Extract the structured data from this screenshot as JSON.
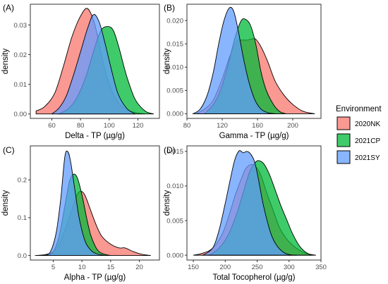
{
  "chart_data": [
    {
      "type": "area",
      "panel_tag": "(A)",
      "xlabel": "Delta - TP (µg/g)",
      "ylabel": "density",
      "xlim": [
        45,
        135
      ],
      "ylim": [
        -0.0015,
        0.037
      ],
      "x_ticks": [
        60,
        80,
        100,
        120
      ],
      "y_ticks": [
        0.0,
        0.01,
        0.02,
        0.03
      ],
      "y_tick_labels": [
        "0.00",
        "0.01",
        "0.02",
        "0.03"
      ],
      "grid": false,
      "series": [
        {
          "name": "2020NK",
          "x": [
            49,
            55,
            62,
            68,
            74,
            80,
            85,
            90,
            95,
            100,
            106,
            112,
            118,
            125
          ],
          "values": [
            0.001,
            0.0025,
            0.007,
            0.016,
            0.026,
            0.033,
            0.0355,
            0.03,
            0.019,
            0.01,
            0.004,
            0.0015,
            0.0005,
            0.0
          ]
        },
        {
          "name": "2021CP",
          "x": [
            65,
            72,
            78,
            84,
            89,
            94,
            99,
            103,
            107,
            112,
            118,
            125,
            131
          ],
          "values": [
            0.0,
            0.002,
            0.006,
            0.013,
            0.021,
            0.028,
            0.0295,
            0.028,
            0.022,
            0.013,
            0.005,
            0.001,
            0.0
          ]
        },
        {
          "name": "2021SY",
          "x": [
            60,
            65,
            70,
            75,
            80,
            85,
            89,
            93,
            97,
            101,
            106,
            112,
            118
          ],
          "values": [
            0.0,
            0.002,
            0.006,
            0.013,
            0.021,
            0.029,
            0.0335,
            0.031,
            0.024,
            0.016,
            0.007,
            0.002,
            0.0
          ]
        }
      ]
    },
    {
      "type": "area",
      "panel_tag": "(B)",
      "xlabel": "Gamma - TP (µg/g)",
      "ylabel": "density",
      "xlim": [
        80,
        232
      ],
      "ylim": [
        -0.001,
        0.0235
      ],
      "x_ticks": [
        80,
        120,
        160,
        200
      ],
      "y_ticks": [
        0.0,
        0.005,
        0.01,
        0.015,
        0.02
      ],
      "y_tick_labels": [
        "0.000",
        "0.005",
        "0.010",
        "0.015",
        "0.020"
      ],
      "grid": false,
      "series": [
        {
          "name": "2020NK",
          "x": [
            90,
            100,
            110,
            120,
            128,
            136,
            142,
            148,
            153,
            158,
            165,
            172,
            180,
            190,
            200,
            212,
            225
          ],
          "values": [
            0.0,
            0.001,
            0.003,
            0.0075,
            0.012,
            0.0155,
            0.0158,
            0.0158,
            0.016,
            0.016,
            0.014,
            0.011,
            0.007,
            0.004,
            0.002,
            0.0005,
            0.0
          ]
        },
        {
          "name": "2021CP",
          "x": [
            100,
            110,
            118,
            126,
            134,
            141,
            146,
            152,
            158,
            164,
            170,
            178,
            185,
            192
          ],
          "values": [
            0.0,
            0.002,
            0.005,
            0.01,
            0.016,
            0.0198,
            0.0203,
            0.019,
            0.015,
            0.009,
            0.005,
            0.002,
            0.0005,
            0.0
          ]
        },
        {
          "name": "2021SY",
          "x": [
            87,
            95,
            103,
            110,
            116,
            122,
            128,
            133,
            138,
            144,
            150,
            157,
            164,
            172,
            180
          ],
          "values": [
            0.0,
            0.001,
            0.004,
            0.009,
            0.015,
            0.02,
            0.0227,
            0.022,
            0.018,
            0.012,
            0.007,
            0.003,
            0.001,
            0.0002,
            0.0
          ]
        }
      ]
    },
    {
      "type": "area",
      "panel_tag": "(C)",
      "xlabel": "Alpha - TP (µg/g)",
      "ylabel": "density",
      "xlim": [
        1,
        23.5
      ],
      "ylim": [
        -0.012,
        0.29
      ],
      "x_ticks": [
        5,
        10,
        15,
        20
      ],
      "y_ticks": [
        0.0,
        0.1,
        0.2
      ],
      "y_tick_labels": [
        "0.0",
        "0.1",
        "0.2"
      ],
      "grid": false,
      "series": [
        {
          "name": "2020NK",
          "x": [
            1.8,
            3.5,
            5,
            6,
            7,
            8,
            9,
            9.7,
            10.5,
            11.5,
            12.5,
            13.5,
            15,
            16.5,
            17.5,
            19,
            20.5,
            22
          ],
          "values": [
            0.0,
            0.002,
            0.01,
            0.03,
            0.065,
            0.11,
            0.155,
            0.17,
            0.16,
            0.12,
            0.08,
            0.05,
            0.03,
            0.02,
            0.02,
            0.01,
            0.003,
            0.0
          ]
        },
        {
          "name": "2021CP",
          "x": [
            4,
            5,
            6,
            7,
            7.8,
            8.5,
            9.2,
            10,
            10.8,
            11.5,
            12.3,
            13,
            14,
            15
          ],
          "values": [
            0.0,
            0.01,
            0.05,
            0.13,
            0.195,
            0.215,
            0.205,
            0.16,
            0.1,
            0.055,
            0.025,
            0.01,
            0.003,
            0.0
          ]
        },
        {
          "name": "2021SY",
          "x": [
            3.5,
            4.5,
            5.5,
            6.3,
            7,
            7.5,
            8,
            8.8,
            9.5,
            10.5,
            11.5,
            12.5,
            14
          ],
          "values": [
            0.0,
            0.01,
            0.06,
            0.15,
            0.26,
            0.275,
            0.25,
            0.17,
            0.1,
            0.04,
            0.015,
            0.005,
            0.0
          ]
        }
      ]
    },
    {
      "type": "area",
      "panel_tag": "(D)",
      "xlabel": "Total Tocopherol (µg/g)",
      "ylabel": "density",
      "xlim": [
        140,
        350
      ],
      "ylim": [
        -0.0007,
        0.0158
      ],
      "x_ticks": [
        150,
        200,
        250,
        300,
        350
      ],
      "y_ticks": [
        0.0,
        0.005,
        0.01,
        0.015
      ],
      "y_tick_labels": [
        "0.000",
        "0.005",
        "0.010",
        "0.015"
      ],
      "grid": false,
      "series": [
        {
          "name": "2020NK",
          "x": [
            150,
            165,
            180,
            195,
            205,
            215,
            225,
            232,
            240,
            248,
            256,
            265,
            275,
            285,
            295,
            305,
            315,
            325,
            335,
            342
          ],
          "values": [
            0.0,
            0.0003,
            0.001,
            0.003,
            0.0055,
            0.0085,
            0.011,
            0.0125,
            0.0131,
            0.0128,
            0.0115,
            0.009,
            0.0065,
            0.004,
            0.0025,
            0.0015,
            0.0008,
            0.0003,
            0.0001,
            0.0
          ]
        },
        {
          "name": "2021CP",
          "x": [
            175,
            190,
            205,
            218,
            228,
            238,
            248,
            255,
            262,
            270,
            278,
            287,
            296,
            305,
            315,
            325,
            335
          ],
          "values": [
            0.0,
            0.001,
            0.003,
            0.006,
            0.009,
            0.012,
            0.0135,
            0.0136,
            0.013,
            0.0115,
            0.0095,
            0.0072,
            0.0052,
            0.0032,
            0.0015,
            0.0005,
            0.0
          ]
        },
        {
          "name": "2021SY",
          "x": [
            165,
            180,
            190,
            200,
            208,
            215,
            222,
            228,
            234,
            240,
            246,
            252,
            258,
            265,
            272,
            280,
            290,
            300,
            312
          ],
          "values": [
            0.0,
            0.001,
            0.0035,
            0.0075,
            0.011,
            0.0138,
            0.0151,
            0.0148,
            0.015,
            0.0146,
            0.0135,
            0.011,
            0.008,
            0.0052,
            0.003,
            0.0015,
            0.0005,
            0.0001,
            0.0
          ]
        }
      ]
    }
  ],
  "legend": {
    "title": "Environment",
    "placement": "right",
    "items": [
      {
        "name": "2020NK",
        "color": "#F8766D"
      },
      {
        "name": "2021CP",
        "color": "#00BA38"
      },
      {
        "name": "2021SY",
        "color": "#619CFF"
      }
    ]
  },
  "style": {
    "fill_opacity": 0.75,
    "outline_color": "#000000",
    "panel_border_color": "#333333"
  }
}
